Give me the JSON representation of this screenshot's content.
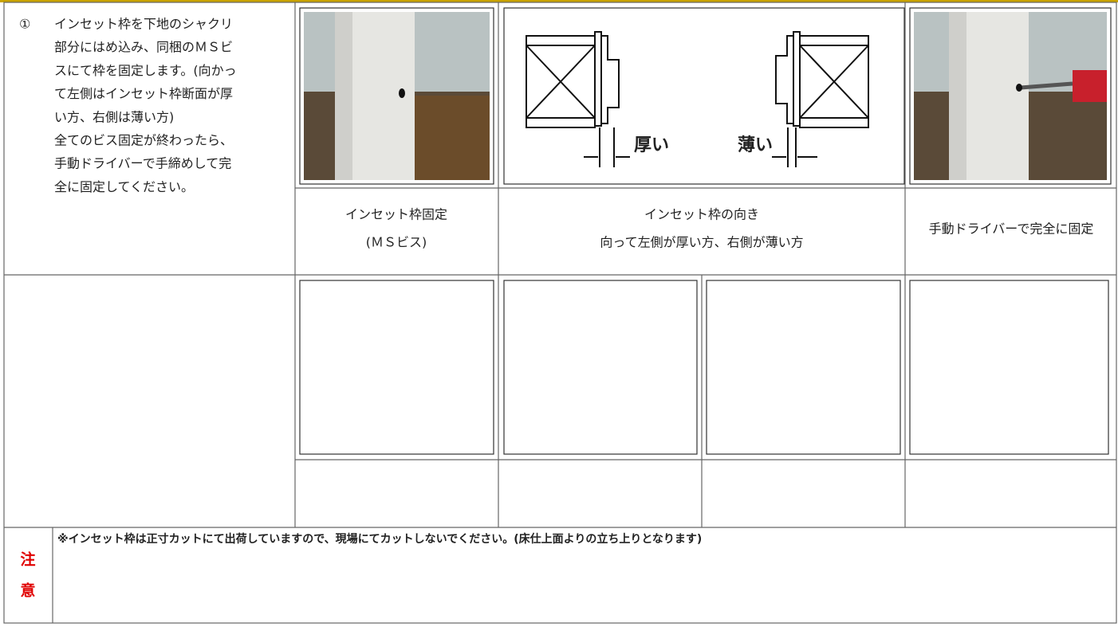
{
  "step": {
    "number": "①",
    "lines": [
      "インセット枠を下地のシャクリ",
      "部分にはめ込み、同梱のＭＳビ",
      "スにて枠を固定します。(向かっ",
      "て左側はインセット枠断面が厚",
      "い方、右側は薄い方)",
      "全てのビス固定が終わったら、",
      "手動ドライバーで手締めして完",
      "全に固定してください。"
    ]
  },
  "diagram": {
    "thick_label": "厚い",
    "thin_label": "薄い"
  },
  "captions": [
    {
      "lines": [
        "インセット枠固定",
        "(ＭＳビス)"
      ]
    },
    {
      "lines": [
        "インセット枠の向き",
        "向って左側が厚い方、右側が薄い方"
      ]
    },
    {
      "lines": [
        "手動ドライバーで完全に固定"
      ]
    }
  ],
  "notice": {
    "label": [
      "注",
      "意"
    ],
    "text": "※インセット枠は正寸カットにて出荷していますので、現場にてカットしないでください。(床仕上面よりの立ち上りとなります)"
  }
}
